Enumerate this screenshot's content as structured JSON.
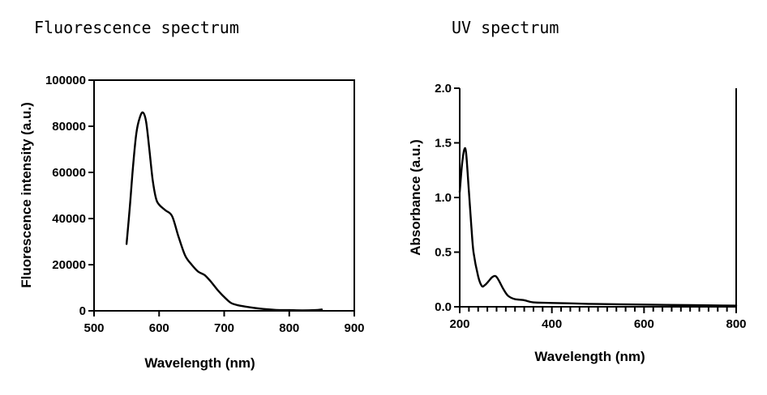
{
  "chart_data": [
    {
      "type": "line",
      "title": "Fluorescence spectrum",
      "xlabel": "Wavelength (nm)",
      "ylabel": "Fluorescence intensity (a.u.)",
      "xlim": [
        500,
        900
      ],
      "ylim": [
        0,
        100000
      ],
      "xticks": [
        500,
        600,
        700,
        800,
        900
      ],
      "yticks": [
        0,
        20000,
        40000,
        60000,
        80000,
        100000
      ],
      "xtick_labels": [
        "500",
        "600",
        "700",
        "800",
        "900"
      ],
      "ytick_labels": [
        "0",
        "20000",
        "40000",
        "60000",
        "80000",
        "100000"
      ],
      "grid": false,
      "series": [
        {
          "name": "Fluorescence",
          "x": [
            550,
            555,
            560,
            565,
            570,
            575,
            580,
            585,
            590,
            595,
            600,
            610,
            620,
            630,
            640,
            650,
            660,
            670,
            680,
            690,
            700,
            710,
            720,
            740,
            760,
            780,
            800,
            820,
            840,
            850
          ],
          "y": [
            29000,
            45000,
            63000,
            77000,
            83500,
            86000,
            82000,
            70000,
            57000,
            49000,
            46000,
            43500,
            41000,
            32000,
            24000,
            20000,
            17000,
            15500,
            12500,
            9000,
            6000,
            3500,
            2500,
            1500,
            800,
            400,
            300,
            200,
            300,
            600
          ]
        }
      ]
    },
    {
      "type": "line",
      "title": "UV spectrum",
      "xlabel": "Wavelength (nm)",
      "ylabel": "Absorbance (a.u.)",
      "xlim": [
        200,
        800
      ],
      "ylim": [
        0,
        2.0
      ],
      "xticks": [
        200,
        400,
        600,
        800
      ],
      "yticks": [
        0,
        0.5,
        1.0,
        1.5,
        2.0
      ],
      "xtick_labels": [
        "200",
        "400",
        "600",
        "800"
      ],
      "ytick_labels": [
        "0.0",
        "0.5",
        "1.0",
        "1.5",
        "2.0"
      ],
      "minor_xtick_step": 20,
      "grid": false,
      "series": [
        {
          "name": "Absorbance",
          "x": [
            200,
            205,
            210,
            214,
            220,
            225,
            230,
            240,
            248,
            255,
            262,
            270,
            278,
            285,
            295,
            305,
            320,
            340,
            360,
            400,
            450,
            500,
            600,
            700,
            800
          ],
          "y": [
            1.05,
            1.3,
            1.44,
            1.4,
            1.05,
            0.75,
            0.5,
            0.28,
            0.19,
            0.2,
            0.23,
            0.27,
            0.28,
            0.24,
            0.16,
            0.1,
            0.07,
            0.06,
            0.04,
            0.035,
            0.03,
            0.025,
            0.02,
            0.015,
            0.01
          ]
        }
      ]
    }
  ]
}
